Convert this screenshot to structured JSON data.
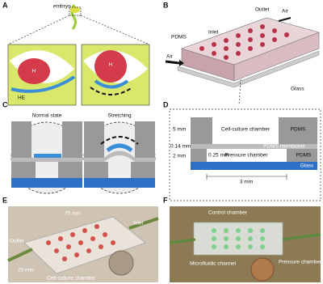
{
  "panels": [
    {
      "letter": "A",
      "labels": [
        "embryo",
        "H",
        "H",
        "HE"
      ]
    },
    {
      "letter": "B",
      "labels": [
        "PDMS",
        "Inlet",
        "Outlet",
        "Air",
        "Air",
        "Glass"
      ]
    },
    {
      "letter": "C",
      "labels": [
        "Normal state",
        "Stretching"
      ]
    },
    {
      "letter": "D",
      "labels": [
        "5 mm",
        "0.14 mm",
        "2 mm",
        "0.25 mm",
        "3 mm",
        "Cell-culture chamber",
        "PDMS",
        "PDMS membrane",
        "PDMS",
        "Pressure chamber",
        "Glass"
      ]
    },
    {
      "letter": "E",
      "labels": [
        "75 mm",
        "Outlet",
        "25 mm",
        "Inlet",
        "Cell-culture chamber"
      ]
    },
    {
      "letter": "F",
      "labels": [
        "Control chamber",
        "Microfluidic channel",
        "Pressure chamber"
      ]
    }
  ]
}
